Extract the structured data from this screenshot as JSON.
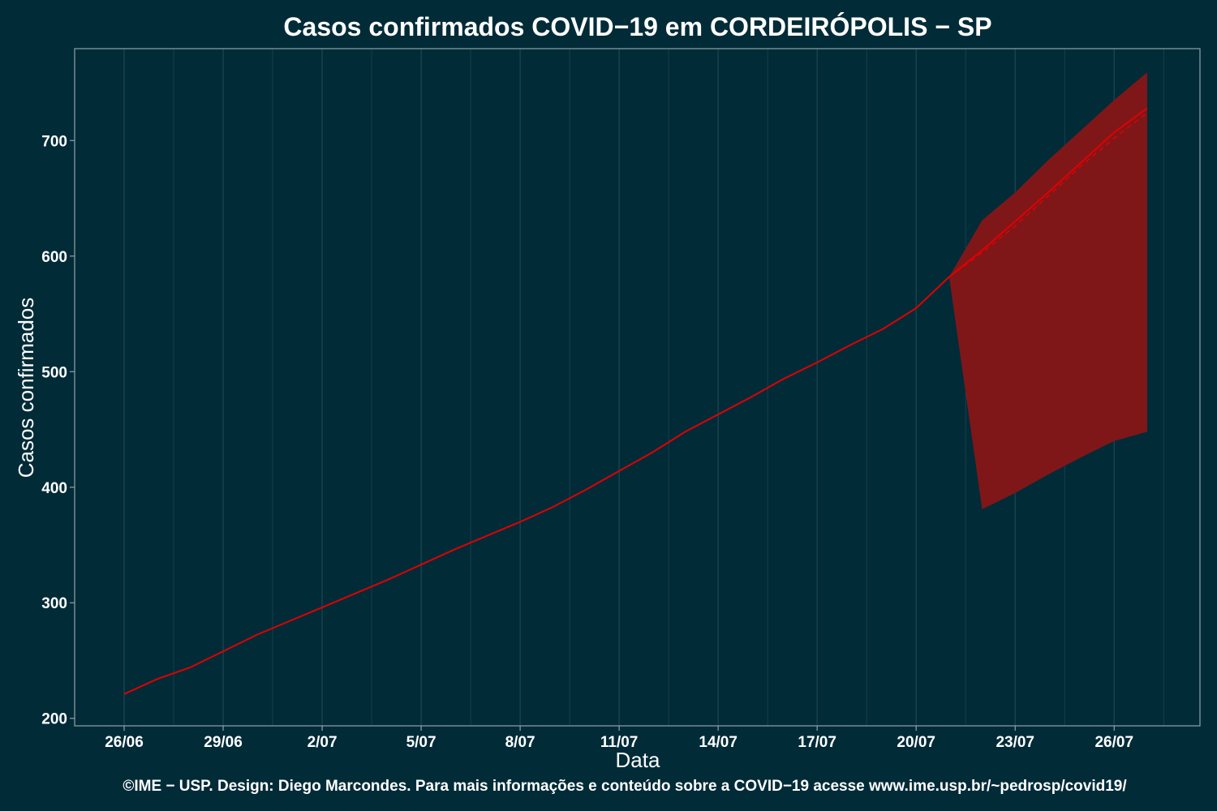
{
  "chart_data": {
    "type": "line",
    "title": "Casos confirmados COVID−19 em CORDEIRÓPOLIS − SP",
    "xlabel": "Data",
    "ylabel": "Casos confirmados",
    "caption": "©IME − USP. Design: Diego Marcondes. Para mais informações e conteúdo sobre a COVID−19 acesse www.ime.usp.br/~pedrosp/covid19/",
    "x_ticks": [
      "26/06",
      "29/06",
      "2/07",
      "5/07",
      "8/07",
      "11/07",
      "14/07",
      "17/07",
      "20/07",
      "23/07",
      "26/07"
    ],
    "x_tick_positions": [
      0,
      3,
      6,
      9,
      12,
      15,
      18,
      21,
      24,
      27,
      30
    ],
    "y_ticks": [
      200,
      300,
      400,
      500,
      600,
      700
    ],
    "xlim": [
      -1.5,
      32.6
    ],
    "ylim": [
      193.5,
      779.5
    ],
    "grid": "vertical",
    "colors": {
      "background": "#022b38",
      "line": "#e00000",
      "band": "#7f1719",
      "grid": "#1a4550",
      "border": "#8fa3a8"
    },
    "observed": {
      "x": [
        0,
        1,
        2,
        3,
        4,
        5,
        6,
        7,
        8,
        9,
        10,
        11,
        12,
        13,
        14,
        15,
        16,
        17,
        18,
        19,
        20,
        21,
        22,
        23,
        24,
        25
      ],
      "y": [
        221,
        234,
        244,
        258,
        272,
        284,
        296,
        308,
        320,
        333,
        346,
        358,
        370,
        383,
        398,
        414,
        430,
        448,
        463,
        478,
        494,
        508,
        523,
        537,
        555,
        582
      ]
    },
    "forecast": {
      "x": [
        25,
        26,
        27,
        28,
        29,
        30,
        31
      ],
      "median": [
        582,
        605,
        630,
        655,
        681,
        707,
        728
      ],
      "mean": [
        582,
        603,
        626,
        652,
        678,
        702,
        724
      ],
      "lower": [
        582,
        381,
        395,
        411,
        426,
        440,
        448
      ],
      "upper": [
        582,
        631,
        655,
        683,
        709,
        735,
        759
      ]
    }
  }
}
